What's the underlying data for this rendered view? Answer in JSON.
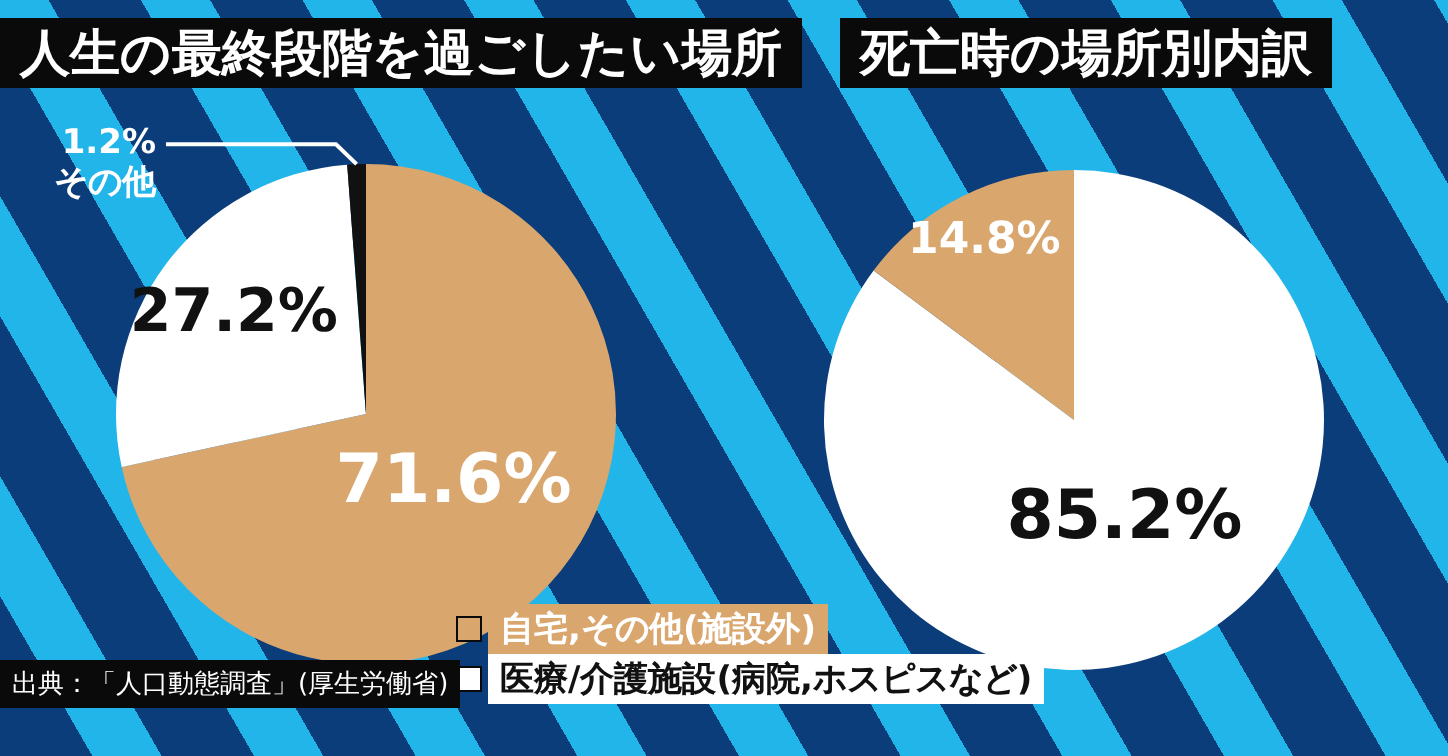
{
  "chart_data": [
    {
      "type": "pie",
      "title": "人生の最終段階を過ごしたい場所",
      "categories": [
        null,
        null,
        "その他"
      ],
      "values": [
        71.6,
        27.2,
        1.2
      ],
      "colors": [
        "#d9a66e",
        "#ffffff",
        "#111111"
      ],
      "value_labels": [
        "71.6%",
        "27.2%",
        "1.2%"
      ],
      "annotations": [
        "出典：「人口動態調査」(厚生労働省)"
      ]
    },
    {
      "type": "pie",
      "title": "死亡時の場所別内訳",
      "categories": [
        "医療/介護施設(病院,ホスピスなど)",
        "自宅,その他(施設外)"
      ],
      "values": [
        85.2,
        14.8
      ],
      "colors": [
        "#ffffff",
        "#d9a66e"
      ],
      "value_labels": [
        "85.2%",
        "14.8%"
      ],
      "legend": "bottom"
    }
  ]
}
